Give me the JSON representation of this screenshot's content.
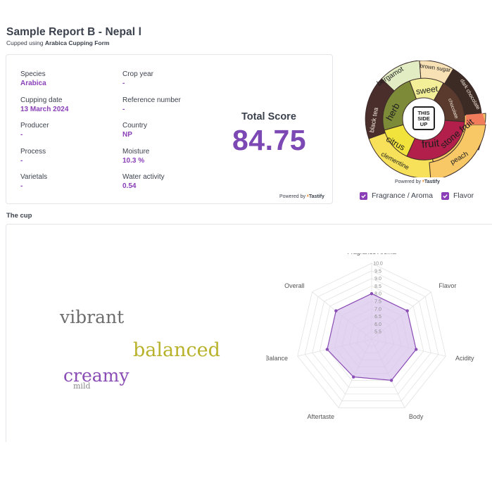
{
  "header": {
    "title": "Sample Report B - Nepal l",
    "subtitle_prefix": "Cupped using",
    "subtitle_form": "Arabica Cupping Form"
  },
  "info": {
    "species": {
      "label": "Species",
      "value": "Arabica"
    },
    "crop_year": {
      "label": "Crop year",
      "value": "-"
    },
    "cupping_date": {
      "label": "Cupping date",
      "value": "13 March 2024"
    },
    "reference_number": {
      "label": "Reference number",
      "value": "-"
    },
    "producer": {
      "label": "Producer",
      "value": "-"
    },
    "country": {
      "label": "Country",
      "value": "NP"
    },
    "process": {
      "label": "Process",
      "value": "-"
    },
    "moisture": {
      "label": "Moisture",
      "value": "10.3 %"
    },
    "varietals": {
      "label": "Varietals",
      "value": "-"
    },
    "water_activity": {
      "label": "Water activity",
      "value": "0.54"
    }
  },
  "score": {
    "label": "Total Score",
    "value": "84.75"
  },
  "powered": {
    "prefix": "Powered by",
    "brand": "Tastify"
  },
  "wheel": {
    "center_text": [
      "THIS",
      "SIDE",
      "UP"
    ],
    "inner": [
      {
        "label": "herb",
        "color": "#7d8b38"
      },
      {
        "label": "sweet",
        "color": "#f2ef98"
      },
      {
        "label": "chocolate",
        "color": "#5a3a2c"
      },
      {
        "label": "fruit",
        "color": "#b21f4a"
      },
      {
        "label": "citrus",
        "color": "#f2e33c"
      }
    ],
    "outer": [
      {
        "label": "bergamot",
        "color": "#e2edc4"
      },
      {
        "label": "brown sugar",
        "color": "#f8e1b5"
      },
      {
        "label": "dark chocolate",
        "color": "#3c2a24"
      },
      {
        "label": "stone fruit",
        "color": "#f07c5c"
      },
      {
        "label": "peach",
        "color": "#f8c867"
      },
      {
        "label": "clementine",
        "color": "#f7e15a"
      },
      {
        "label": "black tea",
        "color": "#4a2e2c"
      }
    ]
  },
  "legend": [
    {
      "label": "Fragrance / Aroma",
      "checked": true
    },
    {
      "label": "Flavor",
      "checked": true
    }
  ],
  "cup": {
    "title": "The cup",
    "words": [
      {
        "text": "vibrant",
        "color": "#6e6e6e"
      },
      {
        "text": "balanced",
        "color": "#b8b22a"
      },
      {
        "text": "creamy",
        "color": "#8a4cb5"
      },
      {
        "text": "mild",
        "color": "#8a8a8a"
      }
    ]
  },
  "chart_data": {
    "type": "radar",
    "axes": [
      "Fragrance Aroma",
      "Flavor",
      "Acidity",
      "Body",
      "Aftertaste",
      "Balance",
      "Overall"
    ],
    "ticks": [
      "5.5",
      "6.0",
      "6.5",
      "7.0",
      "7.5",
      "8.0",
      "8.5",
      "9.0",
      "9.5",
      "10.0"
    ],
    "range": [
      5,
      10
    ],
    "series": [
      {
        "values": [
          8.0,
          8.0,
          8.0,
          8.0,
          7.75,
          8.0,
          8.0
        ],
        "color": "#8a4cb5",
        "fill": "#d9c6ec"
      }
    ]
  }
}
